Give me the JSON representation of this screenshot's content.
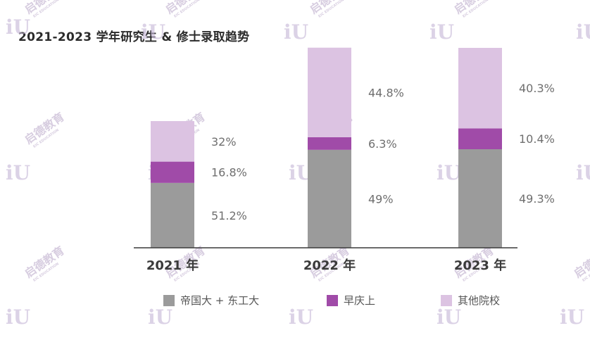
{
  "chart_data": {
    "type": "bar",
    "stacked": true,
    "title": "2021-2023 学年研究生 & 修士录取趋势",
    "categories": [
      "2021 年",
      "2022 年",
      "2023 年"
    ],
    "series": [
      {
        "name": "帝国大 + 东工大",
        "color": "#9b9b9b",
        "values": [
          51.2,
          49,
          49.3
        ],
        "labels": [
          "51.2%",
          "49%",
          "49.3%"
        ]
      },
      {
        "name": "早庆上",
        "color": "#a04ba8",
        "values": [
          16.8,
          6.3,
          10.4
        ],
        "labels": [
          "16.8%",
          "6.3%",
          "10.4%"
        ]
      },
      {
        "name": "其他院校",
        "color": "#dcc3e2",
        "values": [
          32,
          44.8,
          40.3
        ],
        "labels": [
          "32%",
          "44.8%",
          "40.3%"
        ]
      }
    ],
    "legend_position": "bottom",
    "grid": false
  },
  "watermark": {
    "brand": "启德教育",
    "sub": "EIC EDUCATION",
    "logo": "iU"
  }
}
